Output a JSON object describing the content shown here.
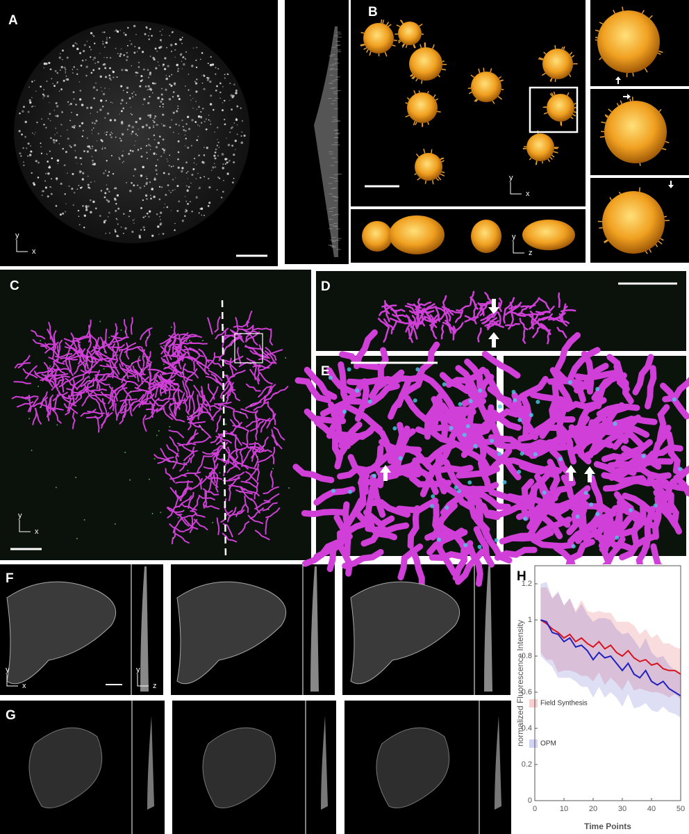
{
  "figure": {
    "panel_labels": [
      "A",
      "B",
      "C",
      "D",
      "E",
      "F",
      "G"
    ],
    "axis_letters": [
      "y",
      "x",
      "y",
      "x",
      "y",
      "z",
      "y",
      "x",
      "y",
      "x",
      "y",
      "z"
    ]
  },
  "chart_data": {
    "type": "line",
    "panel_label": "H",
    "ylabel": "normalized Fluorescence Intensity",
    "xlabel": "Time Points",
    "x": [
      2,
      4,
      6,
      8,
      10,
      12,
      14,
      16,
      18,
      20,
      22,
      24,
      26,
      28,
      30,
      32,
      34,
      36,
      38,
      40,
      42,
      44,
      46,
      48,
      50
    ],
    "series": [
      {
        "name": "Field Synthesis",
        "color": "#d8121b",
        "values": [
          1.0,
          0.98,
          0.95,
          0.93,
          0.9,
          0.92,
          0.88,
          0.9,
          0.87,
          0.85,
          0.88,
          0.84,
          0.86,
          0.82,
          0.8,
          0.83,
          0.79,
          0.77,
          0.78,
          0.75,
          0.76,
          0.73,
          0.72,
          0.72,
          0.7
        ],
        "errors": [
          0.18,
          0.2,
          0.17,
          0.22,
          0.18,
          0.2,
          0.17,
          0.21,
          0.18,
          0.19,
          0.17,
          0.2,
          0.18,
          0.17,
          0.19,
          0.16,
          0.18,
          0.15,
          0.17,
          0.15,
          0.16,
          0.14,
          0.15,
          0.13,
          0.14
        ]
      },
      {
        "name": "OPM",
        "color": "#1f1fbf",
        "values": [
          1.0,
          0.99,
          0.93,
          0.92,
          0.88,
          0.9,
          0.85,
          0.86,
          0.83,
          0.78,
          0.82,
          0.79,
          0.8,
          0.76,
          0.72,
          0.76,
          0.7,
          0.68,
          0.72,
          0.66,
          0.64,
          0.66,
          0.62,
          0.6,
          0.58
        ],
        "errors": [
          0.2,
          0.22,
          0.19,
          0.24,
          0.2,
          0.22,
          0.19,
          0.23,
          0.2,
          0.21,
          0.19,
          0.22,
          0.2,
          0.19,
          0.2,
          0.17,
          0.19,
          0.16,
          0.18,
          0.16,
          0.15,
          0.14,
          0.13,
          0.12,
          0.12
        ]
      }
    ],
    "xlim": [
      0,
      50
    ],
    "ylim": [
      0,
      1.3
    ],
    "xticks": [
      0,
      10,
      20,
      30,
      40,
      50
    ],
    "yticks": [
      0,
      0.2,
      0.4,
      0.6,
      0.8,
      1,
      1.2
    ]
  }
}
